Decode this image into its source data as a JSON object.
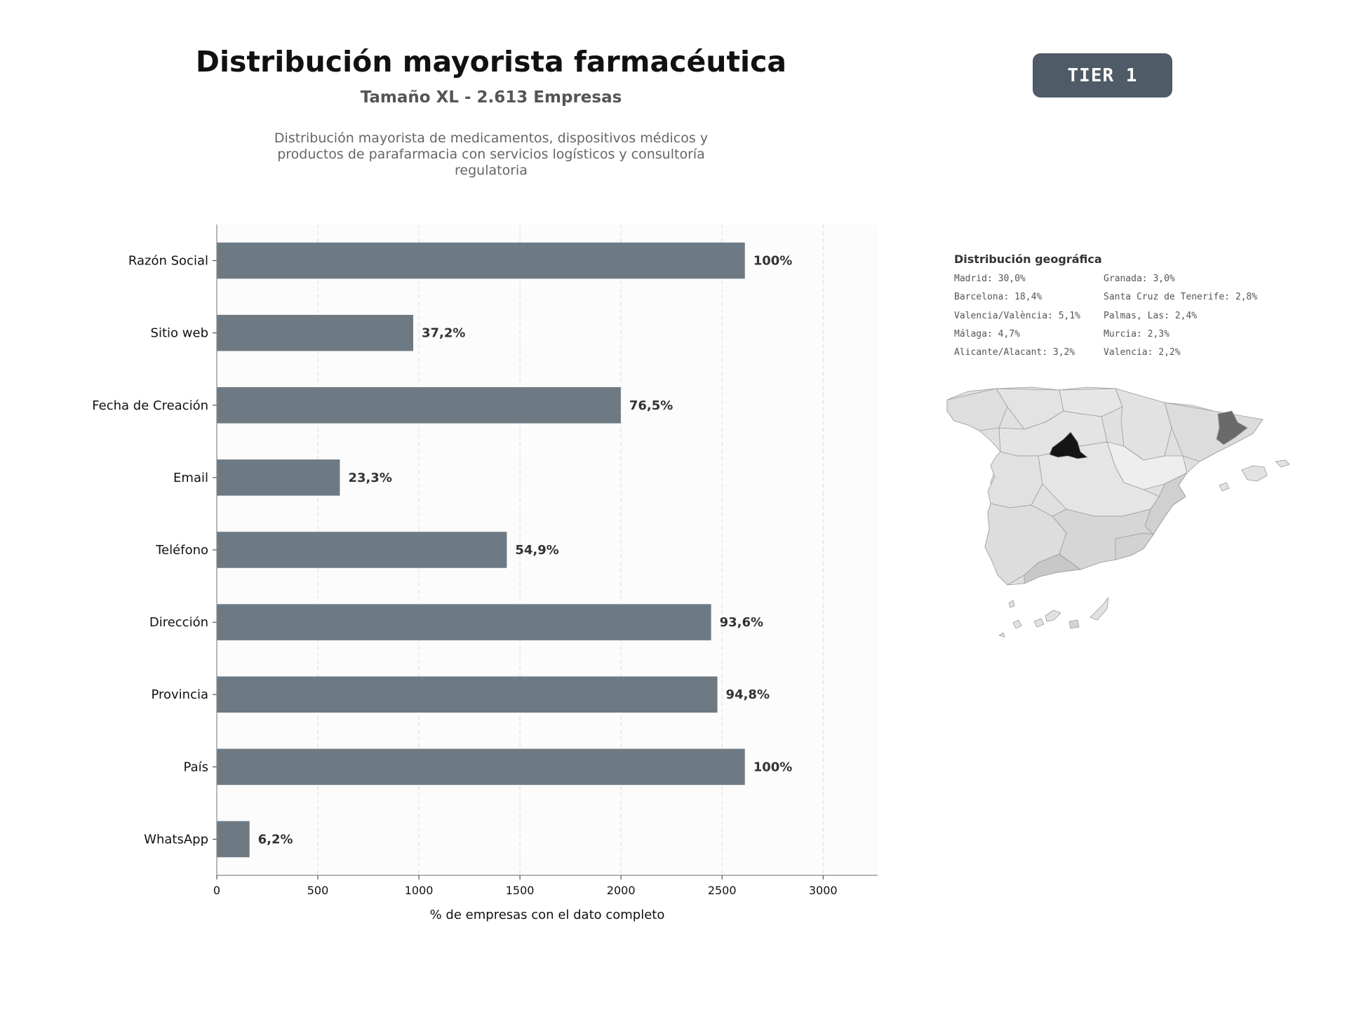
{
  "header": {
    "title": "Distribución mayorista farmacéutica",
    "subtitle": "Tamaño XL - 2.613 Empresas",
    "description": "Distribución mayorista de medicamentos, dispositivos médicos y productos de parafarmacia con servicios logísticos y consultoría regulatoria",
    "tier_badge": "TIER 1"
  },
  "colors": {
    "bar": "#6e7a83",
    "badge": "#4f5b66",
    "plot_background": "#fcfcfc",
    "madrid": "#151515",
    "barcelona": "#6a6a6a"
  },
  "chart_data": {
    "type": "bar",
    "orientation": "horizontal",
    "categories": [
      "Razón Social",
      "Sitio web",
      "Fecha de Creación",
      "Email",
      "Teléfono",
      "Dirección",
      "Provincia",
      "País",
      "WhatsApp"
    ],
    "values": [
      2613,
      972,
      1999,
      609,
      1435,
      2446,
      2477,
      2613,
      162
    ],
    "value_labels": [
      "100%",
      "37,2%",
      "76,5%",
      "23,3%",
      "54,9%",
      "93,6%",
      "94,8%",
      "100%",
      "6,2%"
    ],
    "xlabel": "% de empresas con el dato completo",
    "ylabel": "",
    "xlim": [
      0,
      3270
    ],
    "xticks": [
      0,
      500,
      1000,
      1500,
      2000,
      2500,
      3000
    ],
    "grid": "vertical dashed",
    "legend": "none"
  },
  "geo": {
    "title": "Distribución geográfica",
    "left_column": [
      "Madrid: 30,0%",
      "Barcelona: 18,4%",
      "Valencia/València: 5,1%",
      "Málaga: 4,7%",
      "Alicante/Alacant: 3,2%"
    ],
    "right_column": [
      "Granada: 3,0%",
      "Santa Cruz de Tenerife: 2,8%",
      "Palmas, Las: 2,4%",
      "Murcia: 2,3%",
      "Valencia: 2,2%"
    ]
  }
}
